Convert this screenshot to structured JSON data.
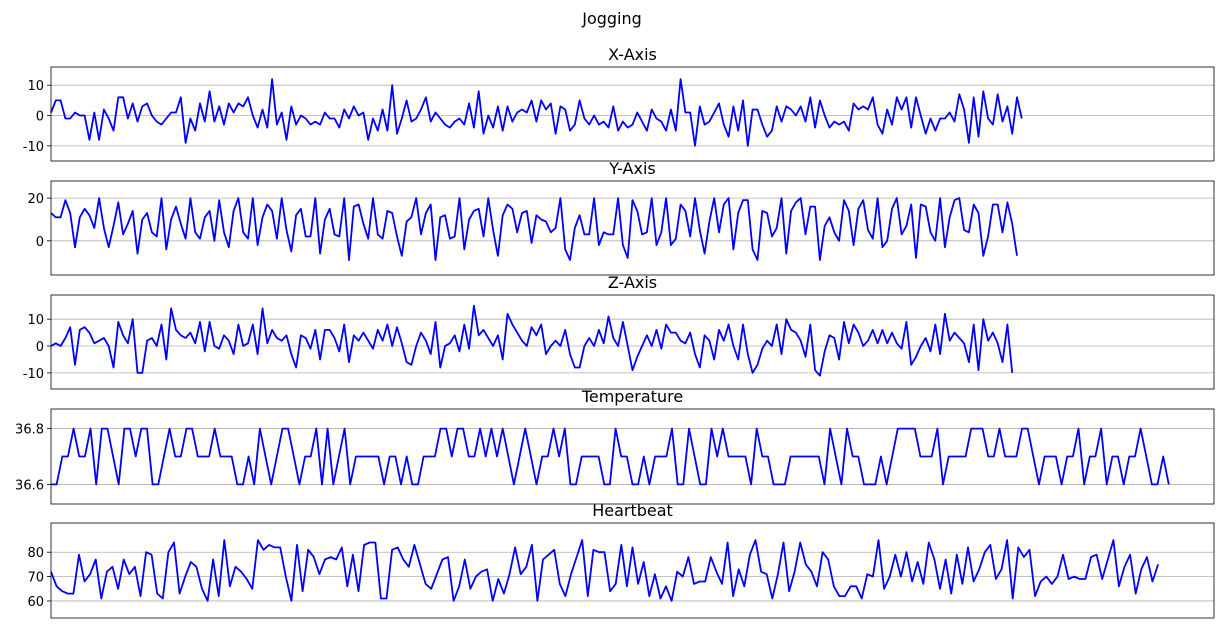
{
  "suptitle": "Jogging",
  "chart_data": [
    {
      "type": "line",
      "title": "X-Axis",
      "color": "#0000ff",
      "ylim": [
        -15,
        16
      ],
      "yticks": [
        -10,
        0,
        10
      ],
      "grid": true,
      "values": [
        1,
        5,
        5,
        -1,
        -1,
        1,
        0,
        0,
        -8,
        1,
        -8,
        2,
        -1,
        -5,
        6,
        6,
        -1,
        4,
        -2,
        3,
        4,
        0,
        -2,
        -3,
        -1,
        1,
        1,
        6,
        -9,
        -1,
        -5,
        4,
        -2,
        8,
        -2,
        3,
        -3,
        4,
        1,
        4,
        3,
        6,
        0,
        -4,
        2,
        -4,
        12,
        -3,
        1,
        -8,
        3,
        -3,
        0,
        -1,
        -3,
        -2,
        -3,
        1,
        -1,
        -1,
        -4,
        2,
        -1,
        3,
        0,
        1,
        -8,
        -1,
        -5,
        2,
        -5,
        10,
        -6,
        -1,
        5,
        -2,
        -1,
        2,
        6,
        -2,
        1,
        -1,
        -3,
        -4,
        -2,
        -1,
        -3,
        4,
        -4,
        8,
        -6,
        0,
        -4,
        3,
        -5,
        3,
        -2,
        1,
        2,
        1,
        5,
        -2,
        5,
        2,
        4,
        -6,
        3,
        2,
        -5,
        -3,
        5,
        -1,
        -3,
        0,
        -3,
        -2,
        -4,
        3,
        -5,
        -2,
        -4,
        -3,
        1,
        -2,
        -5,
        2,
        -1,
        -2,
        -5,
        2,
        -5,
        12,
        1,
        1,
        -10,
        3,
        -3,
        -2,
        1,
        4,
        -3,
        -7,
        3,
        -5,
        5,
        -10,
        2,
        2,
        -3,
        -7,
        -5,
        3,
        -2,
        3,
        2,
        0,
        3,
        -2,
        6,
        -4,
        5,
        0,
        -4,
        -2,
        -3,
        -2,
        -5,
        4,
        2,
        3,
        2,
        6,
        -3,
        -6,
        2,
        -3,
        6,
        2,
        6,
        -4,
        6,
        0,
        -6,
        -1,
        -5,
        -1,
        -1,
        1,
        -2,
        7,
        2,
        -9,
        6,
        -7,
        8,
        -1,
        -3,
        7,
        -2,
        3,
        -6,
        6,
        -1
      ],
      "xlim": [
        0,
        242
      ]
    },
    {
      "type": "line",
      "title": "Y-Axis",
      "color": "#0000ff",
      "ylim": [
        -16,
        28
      ],
      "yticks": [
        0,
        20
      ],
      "grid": true,
      "values": [
        13,
        11,
        11,
        19,
        13,
        -3,
        11,
        15,
        12,
        6,
        20,
        6,
        -3,
        7,
        18,
        3,
        8,
        14,
        -6,
        10,
        13,
        4,
        2,
        20,
        -4,
        10,
        16,
        8,
        1,
        20,
        4,
        1,
        11,
        14,
        0,
        19,
        4,
        -3,
        14,
        20,
        4,
        1,
        20,
        -2,
        11,
        17,
        14,
        1,
        20,
        5,
        -5,
        12,
        15,
        2,
        2,
        20,
        -6,
        10,
        15,
        3,
        2,
        20,
        -9,
        16,
        17,
        8,
        1,
        20,
        3,
        1,
        14,
        13,
        2,
        -7,
        9,
        11,
        20,
        3,
        13,
        17,
        -9,
        11,
        12,
        1,
        2,
        20,
        -4,
        10,
        14,
        15,
        2,
        20,
        5,
        -7,
        12,
        17,
        15,
        4,
        13,
        14,
        -1,
        12,
        10,
        9,
        4,
        6,
        20,
        -4,
        -9,
        6,
        12,
        3,
        3,
        20,
        -2,
        4,
        3,
        3,
        20,
        -2,
        -8,
        19,
        14,
        3,
        4,
        20,
        -2,
        4,
        20,
        -2,
        1,
        17,
        14,
        2,
        20,
        5,
        -6,
        9,
        20,
        4,
        17,
        20,
        -4,
        13,
        19,
        19,
        -4,
        -9,
        14,
        13,
        2,
        6,
        20,
        -6,
        14,
        18,
        20,
        3,
        16,
        16,
        -9,
        7,
        11,
        4,
        0,
        19,
        14,
        -2,
        15,
        19,
        5,
        1,
        20,
        -3,
        0,
        15,
        20,
        3,
        7,
        17,
        -8,
        17,
        16,
        4,
        0,
        20,
        -3,
        11,
        19,
        20,
        5,
        4,
        17,
        13,
        -7,
        2,
        17,
        17,
        4,
        18,
        8,
        -7
      ],
      "xlim": [
        0,
        242
      ]
    },
    {
      "type": "line",
      "title": "Z-Axis",
      "color": "#0000ff",
      "ylim": [
        -16,
        19
      ],
      "yticks": [
        -10,
        0,
        10
      ],
      "grid": true,
      "values": [
        0,
        1,
        0,
        3,
        7,
        -7,
        6,
        7,
        5,
        1,
        2,
        3,
        0,
        -8,
        9,
        4,
        1,
        10,
        -10,
        -10,
        2,
        3,
        0,
        8,
        -5,
        14,
        6,
        4,
        3,
        5,
        1,
        9,
        -2,
        9,
        0,
        -1,
        4,
        2,
        -3,
        8,
        0,
        1,
        8,
        -3,
        14,
        1,
        6,
        3,
        2,
        4,
        -3,
        -8,
        4,
        3,
        -1,
        6,
        -5,
        6,
        6,
        3,
        -2,
        8,
        -6,
        4,
        2,
        5,
        2,
        -1,
        6,
        2,
        8,
        0,
        7,
        1,
        -6,
        -7,
        0,
        5,
        2,
        -3,
        9,
        -8,
        0,
        1,
        4,
        -2,
        8,
        -1,
        15,
        4,
        6,
        3,
        0,
        4,
        -5,
        12,
        8,
        5,
        2,
        0,
        7,
        4,
        8,
        -3,
        0,
        2,
        0,
        6,
        -3,
        -8,
        -8,
        0,
        3,
        0,
        6,
        1,
        11,
        3,
        0,
        9,
        0,
        -9,
        -4,
        0,
        4,
        0,
        6,
        -1,
        8,
        5,
        5,
        2,
        1,
        5,
        -3,
        -8,
        4,
        2,
        -5,
        6,
        2,
        8,
        0,
        -5,
        8,
        -3,
        -10,
        -7,
        -1,
        2,
        0,
        8,
        -3,
        10,
        6,
        5,
        2,
        -4,
        8,
        -9,
        -11,
        -2,
        4,
        3,
        -5,
        9,
        1,
        8,
        5,
        0,
        2,
        6,
        1,
        6,
        1,
        5,
        1,
        -1,
        9,
        -7,
        -4,
        0,
        3,
        -2,
        8,
        -3,
        12,
        2,
        5,
        3,
        1,
        -6,
        8,
        -9,
        10,
        2,
        5,
        1,
        -6,
        8,
        -10
      ],
      "xlim": [
        0,
        242
      ]
    },
    {
      "type": "line",
      "title": "Temperature",
      "color": "#0000ff",
      "ylim": [
        36.53,
        36.87
      ],
      "yticks": [
        36.6,
        36.8
      ],
      "grid": true,
      "values": [
        36.6,
        36.6,
        36.7,
        36.7,
        36.8,
        36.7,
        36.7,
        36.8,
        36.6,
        36.8,
        36.8,
        36.7,
        36.6,
        36.8,
        36.8,
        36.7,
        36.8,
        36.8,
        36.6,
        36.6,
        36.7,
        36.8,
        36.7,
        36.7,
        36.8,
        36.8,
        36.7,
        36.7,
        36.7,
        36.8,
        36.7,
        36.7,
        36.7,
        36.6,
        36.6,
        36.7,
        36.6,
        36.8,
        36.7,
        36.6,
        36.7,
        36.8,
        36.8,
        36.7,
        36.6,
        36.7,
        36.7,
        36.8,
        36.6,
        36.8,
        36.6,
        36.7,
        36.8,
        36.6,
        36.7,
        36.7,
        36.7,
        36.7,
        36.7,
        36.6,
        36.7,
        36.7,
        36.6,
        36.7,
        36.6,
        36.6,
        36.7,
        36.7,
        36.7,
        36.8,
        36.8,
        36.7,
        36.8,
        36.8,
        36.7,
        36.7,
        36.8,
        36.7,
        36.8,
        36.7,
        36.8,
        36.7,
        36.6,
        36.7,
        36.8,
        36.7,
        36.6,
        36.7,
        36.7,
        36.8,
        36.7,
        36.8,
        36.6,
        36.6,
        36.7,
        36.7,
        36.7,
        36.7,
        36.6,
        36.6,
        36.8,
        36.7,
        36.7,
        36.6,
        36.6,
        36.7,
        36.6,
        36.7,
        36.7,
        36.7,
        36.8,
        36.6,
        36.6,
        36.8,
        36.7,
        36.6,
        36.6,
        36.8,
        36.7,
        36.8,
        36.7,
        36.7,
        36.7,
        36.7,
        36.6,
        36.8,
        36.7,
        36.7,
        36.6,
        36.6,
        36.6,
        36.7,
        36.7,
        36.7,
        36.7,
        36.7,
        36.7,
        36.6,
        36.8,
        36.7,
        36.6,
        36.8,
        36.7,
        36.7,
        36.6,
        36.6,
        36.6,
        36.7,
        36.6,
        36.7,
        36.8,
        36.8,
        36.8,
        36.8,
        36.7,
        36.7,
        36.7,
        36.8,
        36.6,
        36.7,
        36.7,
        36.7,
        36.7,
        36.8,
        36.8,
        36.8,
        36.7,
        36.7,
        36.8,
        36.7,
        36.7,
        36.7,
        36.8,
        36.8,
        36.7,
        36.6,
        36.7,
        36.7,
        36.7,
        36.6,
        36.7,
        36.7,
        36.8,
        36.6,
        36.7,
        36.7,
        36.8,
        36.6,
        36.7,
        36.7,
        36.6,
        36.7,
        36.7,
        36.8,
        36.7,
        36.6,
        36.6,
        36.7,
        36.6
      ],
      "xlim": [
        0,
        206
      ]
    },
    {
      "type": "line",
      "title": "Heartbeat",
      "color": "#0000ff",
      "ylim": [
        53,
        92
      ],
      "yticks": [
        60,
        70,
        80
      ],
      "grid": true,
      "values": [
        72,
        66,
        64,
        63,
        63,
        79,
        68,
        71,
        77,
        61,
        72,
        74,
        65,
        77,
        71,
        74,
        62,
        80,
        79,
        63,
        61,
        80,
        84,
        63,
        70,
        76,
        74,
        65,
        60,
        77,
        62,
        85,
        66,
        74,
        72,
        69,
        65,
        85,
        81,
        83,
        82,
        82,
        70,
        60,
        83,
        64,
        81,
        78,
        71,
        77,
        78,
        77,
        82,
        66,
        79,
        64,
        83,
        84,
        84,
        61,
        61,
        81,
        82,
        77,
        74,
        83,
        75,
        67,
        65,
        71,
        77,
        78,
        60,
        66,
        77,
        65,
        70,
        72,
        73,
        60,
        69,
        63,
        71,
        82,
        71,
        74,
        83,
        60,
        77,
        79,
        81,
        67,
        62,
        71,
        78,
        85,
        62,
        81,
        80,
        80,
        64,
        67,
        83,
        66,
        82,
        67,
        76,
        62,
        71,
        61,
        66,
        60,
        72,
        70,
        78,
        67,
        68,
        68,
        78,
        72,
        67,
        84,
        62,
        73,
        66,
        79,
        85,
        72,
        71,
        61,
        71,
        84,
        64,
        72,
        84,
        75,
        72,
        66,
        80,
        77,
        66,
        62,
        62,
        66,
        66,
        61,
        71,
        70,
        85,
        65,
        70,
        79,
        70,
        80,
        68,
        76,
        67,
        84,
        77,
        65,
        77,
        63,
        79,
        67,
        82,
        68,
        73,
        80,
        83,
        69,
        73,
        85,
        61,
        82,
        78,
        81,
        62,
        68,
        70,
        67,
        70,
        79,
        69,
        70,
        69,
        69,
        78,
        79,
        69,
        77,
        85,
        66,
        74,
        79,
        63,
        73,
        78,
        68,
        75
      ],
      "xlim": [
        0,
        208
      ]
    }
  ]
}
